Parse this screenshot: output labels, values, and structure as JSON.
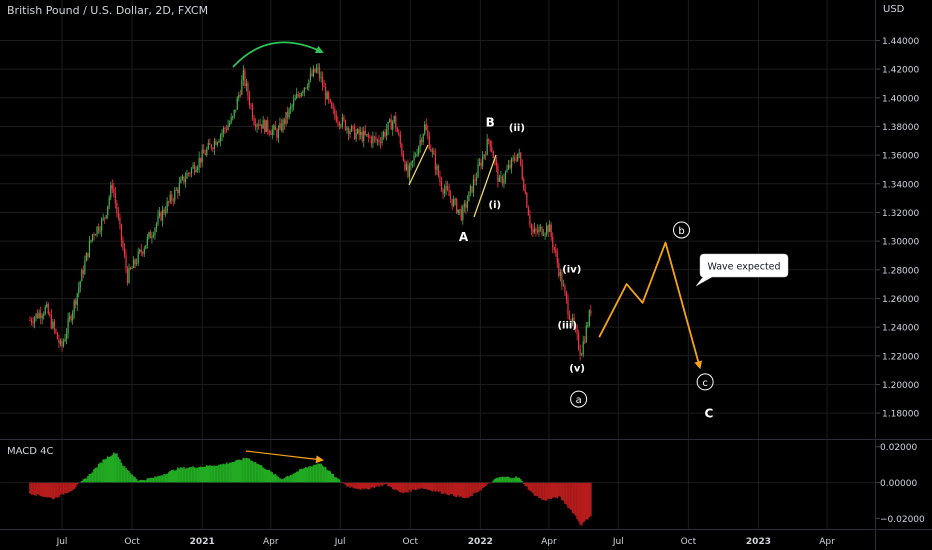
{
  "header": {
    "title": "British Pound / U.S. Dollar, 2D, FXCM",
    "currency": "USD"
  },
  "macd": {
    "title": "MACD 4C"
  },
  "wave_note": "Wave expected",
  "colors": {
    "bg": "#000000",
    "up": "#4caf50",
    "down": "#f23645",
    "hist_up": "#22ab22",
    "hist_down": "#b71c1c",
    "projection": "#f7a21b",
    "arrow": "#2dc653",
    "divergence": "#f7a21b",
    "text": "#d1d4dc",
    "grid": "#1c1c1c"
  },
  "chart_data": [
    {
      "type": "candlestick",
      "title": "British Pound / U.S. Dollar, 2D, FXCM",
      "ylabel": "USD",
      "y_ticks": [
        "1.44000",
        "1.42000",
        "1.40000",
        "1.38000",
        "1.36000",
        "1.34000",
        "1.32000",
        "1.30000",
        "1.28000",
        "1.26000",
        "1.24000",
        "1.22000",
        "1.20000",
        "1.18000"
      ],
      "x_ticks": [
        "Jul",
        "Oct",
        "2021",
        "Apr",
        "Jul",
        "Oct",
        "2022",
        "Apr",
        "Jul",
        "Oct",
        "2023",
        "Apr"
      ],
      "ylim": [
        1.163,
        1.463
      ],
      "price_path": [
        {
          "x": "2020-05-20",
          "y": 1.245
        },
        {
          "x": "2020-06-10",
          "y": 1.253
        },
        {
          "x": "2020-06-30",
          "y": 1.225
        },
        {
          "x": "2020-07-20",
          "y": 1.262
        },
        {
          "x": "2020-08-10",
          "y": 1.305
        },
        {
          "x": "2020-08-25",
          "y": 1.315
        },
        {
          "x": "2020-09-05",
          "y": 1.34
        },
        {
          "x": "2020-09-25",
          "y": 1.275
        },
        {
          "x": "2020-10-15",
          "y": 1.295
        },
        {
          "x": "2020-11-10",
          "y": 1.32
        },
        {
          "x": "2020-12-10",
          "y": 1.345
        },
        {
          "x": "2021-01-10",
          "y": 1.365
        },
        {
          "x": "2021-02-10",
          "y": 1.385
        },
        {
          "x": "2021-02-24",
          "y": 1.415
        },
        {
          "x": "2021-03-10",
          "y": 1.385
        },
        {
          "x": "2021-04-10",
          "y": 1.375
        },
        {
          "x": "2021-05-10",
          "y": 1.405
        },
        {
          "x": "2021-06-01",
          "y": 1.42
        },
        {
          "x": "2021-06-20",
          "y": 1.39
        },
        {
          "x": "2021-07-20",
          "y": 1.375
        },
        {
          "x": "2021-08-20",
          "y": 1.37
        },
        {
          "x": "2021-09-10",
          "y": 1.385
        },
        {
          "x": "2021-09-28",
          "y": 1.345
        },
        {
          "x": "2021-10-20",
          "y": 1.38
        },
        {
          "x": "2021-11-10",
          "y": 1.34
        },
        {
          "x": "2021-12-08",
          "y": 1.318
        },
        {
          "x": "2022-01-13",
          "y": 1.372
        },
        {
          "x": "2022-01-26",
          "y": 1.34
        },
        {
          "x": "2022-02-20",
          "y": 1.362
        },
        {
          "x": "2022-03-10",
          "y": 1.305
        },
        {
          "x": "2022-04-01",
          "y": 1.31
        },
        {
          "x": "2022-04-25",
          "y": 1.255
        },
        {
          "x": "2022-05-13",
          "y": 1.222
        },
        {
          "x": "2022-05-27",
          "y": 1.255
        }
      ],
      "wave_labels": [
        {
          "text": "A",
          "x": "2021-12-10",
          "y": 1.3
        },
        {
          "text": "B",
          "x": "2022-01-14",
          "y": 1.38
        },
        {
          "text": "(ii)",
          "x": "2022-02-18",
          "y": 1.377
        },
        {
          "text": "(i)",
          "x": "2022-01-20",
          "y": 1.323
        },
        {
          "text": "(iv)",
          "x": "2022-05-01",
          "y": 1.278
        },
        {
          "text": "(iii)",
          "x": "2022-04-25",
          "y": 1.239
        },
        {
          "text": "(v)",
          "x": "2022-05-08",
          "y": 1.209
        },
        {
          "text": "a",
          "x": "2022-05-10",
          "y": 1.187,
          "circled": true
        },
        {
          "text": "b",
          "x": "2022-09-22",
          "y": 1.305,
          "circled": true
        },
        {
          "text": "c",
          "x": "2022-10-23",
          "y": 1.199,
          "circled": true
        },
        {
          "text": "C",
          "x": "2022-10-28",
          "y": 1.177
        }
      ],
      "projection": [
        {
          "x": "2022-06-06",
          "y": 1.233
        },
        {
          "x": "2022-07-12",
          "y": 1.27
        },
        {
          "x": "2022-08-02",
          "y": 1.257
        },
        {
          "x": "2022-09-01",
          "y": 1.299
        },
        {
          "x": "2022-10-16",
          "y": 1.212
        }
      ],
      "annotation": "Wave expected"
    },
    {
      "type": "bar",
      "title": "MACD 4C",
      "y_ticks": [
        "0.02000",
        "0.00000",
        "−0.02000"
      ],
      "ylim": [
        -0.0265,
        0.0232
      ],
      "histogram_path": [
        {
          "x": "2020-05-20",
          "y": -0.006
        },
        {
          "x": "2020-06-20",
          "y": -0.009
        },
        {
          "x": "2020-07-15",
          "y": -0.004
        },
        {
          "x": "2020-08-05",
          "y": 0.004
        },
        {
          "x": "2020-08-25",
          "y": 0.013
        },
        {
          "x": "2020-09-10",
          "y": 0.017
        },
        {
          "x": "2020-09-20",
          "y": 0.009
        },
        {
          "x": "2020-10-10",
          "y": 0.001
        },
        {
          "x": "2020-11-01",
          "y": 0.003
        },
        {
          "x": "2020-12-01",
          "y": 0.008
        },
        {
          "x": "2021-01-01",
          "y": 0.009
        },
        {
          "x": "2021-01-25",
          "y": 0.01
        },
        {
          "x": "2021-02-15",
          "y": 0.012
        },
        {
          "x": "2021-03-01",
          "y": 0.014
        },
        {
          "x": "2021-03-25",
          "y": 0.008
        },
        {
          "x": "2021-04-15",
          "y": 0.002
        },
        {
          "x": "2021-05-15",
          "y": 0.008
        },
        {
          "x": "2021-06-05",
          "y": 0.011
        },
        {
          "x": "2021-06-25",
          "y": 0.003
        },
        {
          "x": "2021-07-10",
          "y": -0.002
        },
        {
          "x": "2021-08-01",
          "y": -0.004
        },
        {
          "x": "2021-08-30",
          "y": -0.001
        },
        {
          "x": "2021-09-20",
          "y": -0.006
        },
        {
          "x": "2021-10-15",
          "y": -0.003
        },
        {
          "x": "2021-11-15",
          "y": -0.006
        },
        {
          "x": "2021-12-15",
          "y": -0.009
        },
        {
          "x": "2022-01-05",
          "y": -0.003
        },
        {
          "x": "2022-01-25",
          "y": 0.003
        },
        {
          "x": "2022-02-20",
          "y": 0.003
        },
        {
          "x": "2022-03-10",
          "y": -0.006
        },
        {
          "x": "2022-03-25",
          "y": -0.01
        },
        {
          "x": "2022-04-15",
          "y": -0.008
        },
        {
          "x": "2022-05-05",
          "y": -0.018
        },
        {
          "x": "2022-05-13",
          "y": -0.024
        },
        {
          "x": "2022-05-27",
          "y": -0.018
        }
      ]
    }
  ]
}
